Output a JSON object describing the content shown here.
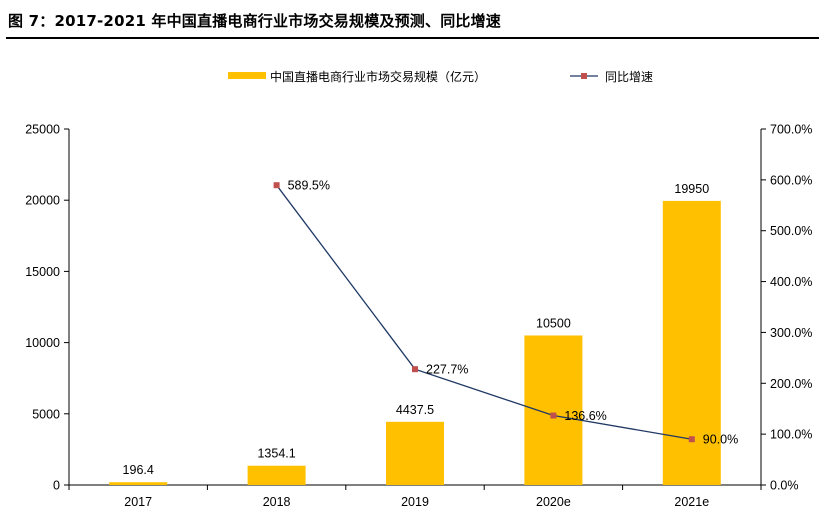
{
  "figure": {
    "title": "图 7：2017-2021 年中国直播电商行业市场交易规模及预测、同比增速"
  },
  "chart_data": {
    "type": "bar",
    "categories": [
      "2017",
      "2018",
      "2019",
      "2020e",
      "2021e"
    ],
    "series": [
      {
        "name": "中国直播电商行业市场交易规模（亿元）",
        "type": "bar",
        "axis": "left",
        "color": "#FFC000",
        "values": [
          196.4,
          1354.1,
          4437.5,
          10500,
          19950
        ],
        "labels": [
          "196.4",
          "1354.1",
          "4437.5",
          "10500",
          "19950"
        ]
      },
      {
        "name": "同比增速",
        "type": "line",
        "axis": "right",
        "line_color": "#1F3864",
        "marker_color": "#C0504D",
        "values": [
          null,
          589.5,
          227.7,
          136.6,
          90.0
        ],
        "labels": [
          null,
          "589.5%",
          "227.7%",
          "136.6%",
          "90.0%"
        ]
      }
    ],
    "left_axis": {
      "ylim": [
        0,
        25000
      ],
      "ticks": [
        0,
        5000,
        10000,
        15000,
        20000,
        25000
      ],
      "tick_labels": [
        "0",
        "5000",
        "10000",
        "15000",
        "20000",
        "25000"
      ]
    },
    "right_axis": {
      "ylim": [
        0,
        700
      ],
      "ticks": [
        0,
        100,
        200,
        300,
        400,
        500,
        600,
        700
      ],
      "tick_labels": [
        "0.0%",
        "100.0%",
        "200.0%",
        "300.0%",
        "400.0%",
        "500.0%",
        "600.0%",
        "700.0%"
      ]
    },
    "legend_position": "top",
    "grid": false
  }
}
